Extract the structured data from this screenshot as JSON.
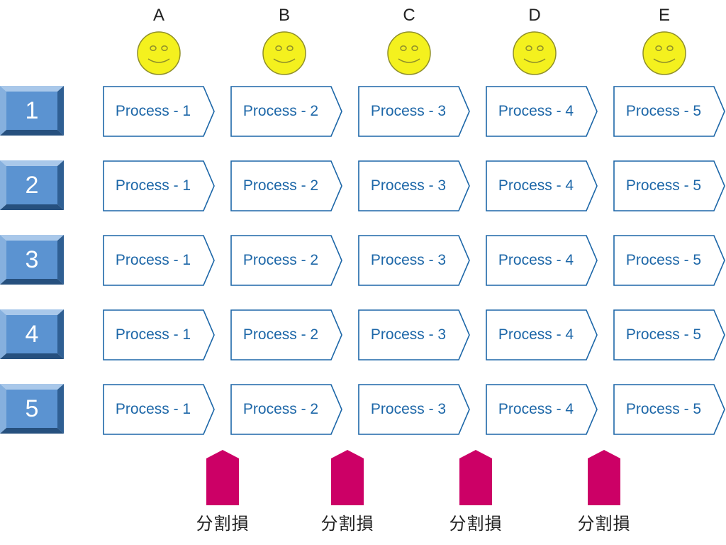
{
  "colors": {
    "smiley_fill": "#f4f11e",
    "smiley_stroke": "#8f8f2a",
    "row_button": "#5b93d1",
    "process_border": "#1d67a8",
    "process_text": "#1d67a8",
    "loss_marker": "#cc0066"
  },
  "workers": [
    {
      "label": "A",
      "icon": "smiley-face-icon"
    },
    {
      "label": "B",
      "icon": "smiley-face-icon"
    },
    {
      "label": "C",
      "icon": "smiley-face-icon"
    },
    {
      "label": "D",
      "icon": "smiley-face-icon"
    },
    {
      "label": "E",
      "icon": "smiley-face-icon"
    }
  ],
  "rows": [
    {
      "label": "1",
      "processes": [
        "Process - 1",
        "Process - 2",
        "Process - 3",
        "Process - 4",
        "Process - 5"
      ]
    },
    {
      "label": "2",
      "processes": [
        "Process - 1",
        "Process - 2",
        "Process - 3",
        "Process - 4",
        "Process - 5"
      ]
    },
    {
      "label": "3",
      "processes": [
        "Process - 1",
        "Process - 2",
        "Process - 3",
        "Process - 4",
        "Process - 5"
      ]
    },
    {
      "label": "4",
      "processes": [
        "Process - 1",
        "Process - 2",
        "Process - 3",
        "Process - 4",
        "Process - 5"
      ]
    },
    {
      "label": "5",
      "processes": [
        "Process - 1",
        "Process - 2",
        "Process - 3",
        "Process - 4",
        "Process - 5"
      ]
    }
  ],
  "losses": [
    {
      "label": "分割損"
    },
    {
      "label": "分割損"
    },
    {
      "label": "分割損"
    },
    {
      "label": "分割損"
    }
  ]
}
